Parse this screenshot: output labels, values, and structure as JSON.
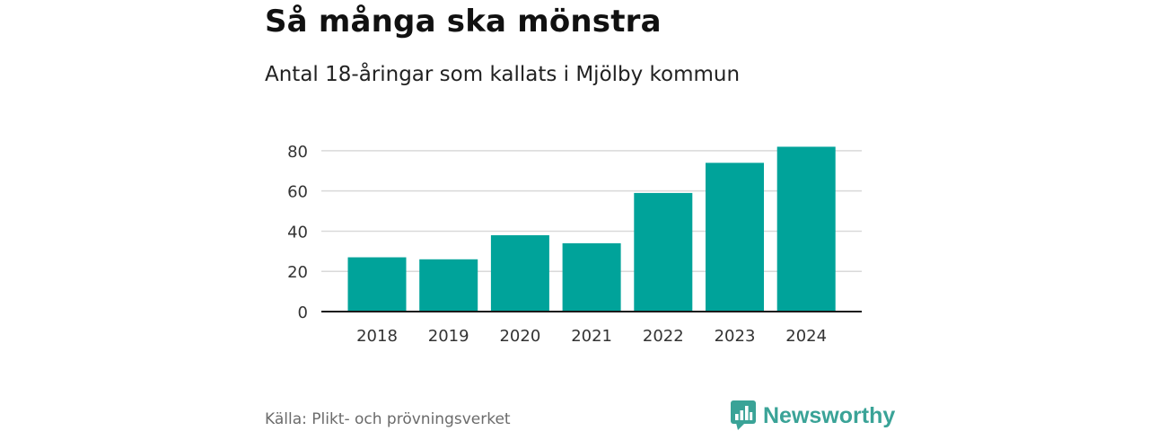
{
  "title": "Så många ska mönstra",
  "subtitle": "Antal 18-åringar som kallats i Mjölby kommun",
  "source": "Källa: Plikt- och prövningsverket",
  "brand": {
    "name": "Newsworthy",
    "color": "#3aa397"
  },
  "colors": {
    "bar": "#00a39a",
    "grid": "#d9d9d9",
    "axis": "#1a1a1a",
    "tick_text": "#333333"
  },
  "chart_data": {
    "type": "bar",
    "title": "Så många ska mönstra",
    "subtitle": "Antal 18-åringar som kallats i Mjölby kommun",
    "xlabel": "",
    "ylabel": "",
    "categories": [
      "2018",
      "2019",
      "2020",
      "2021",
      "2022",
      "2023",
      "2024"
    ],
    "values": [
      27,
      26,
      38,
      34,
      59,
      74,
      82
    ],
    "ylim": [
      0,
      88
    ],
    "yticks": [
      0,
      20,
      40,
      60,
      80
    ],
    "grid": true,
    "legend": "none"
  }
}
